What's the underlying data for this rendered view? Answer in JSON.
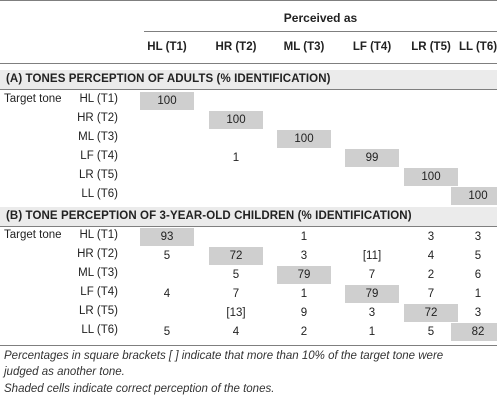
{
  "header": {
    "perceived_as": "Perceived as",
    "columns": [
      "HL (T1)",
      "HR (T2)",
      "ML (T3)",
      "LF (T4)",
      "LR (T5)",
      "LL (T6)"
    ]
  },
  "section_a": {
    "title": "(A) TONES PERCEPTION OF ADULTS (% IDENTIFICATION)",
    "rows": [
      {
        "lead": "Target tone",
        "label": "HL (T1)",
        "cells": [
          "100",
          "",
          "",
          "",
          "",
          ""
        ],
        "shaded": 0
      },
      {
        "lead": "",
        "label": "HR (T2)",
        "cells": [
          "",
          "100",
          "",
          "",
          "",
          ""
        ],
        "shaded": 1
      },
      {
        "lead": "",
        "label": "ML (T3)",
        "cells": [
          "",
          "",
          "100",
          "",
          "",
          ""
        ],
        "shaded": 2
      },
      {
        "lead": "",
        "label": "LF (T4)",
        "cells": [
          "",
          "1",
          "",
          "99",
          "",
          ""
        ],
        "shaded": 3
      },
      {
        "lead": "",
        "label": "LR (T5)",
        "cells": [
          "",
          "",
          "",
          "",
          "100",
          ""
        ],
        "shaded": 4
      },
      {
        "lead": "",
        "label": "LL (T6)",
        "cells": [
          "",
          "",
          "",
          "",
          "",
          "100"
        ],
        "shaded": 5
      }
    ]
  },
  "section_b": {
    "title": "(B) TONE PERCEPTION OF 3-YEAR-OLD CHILDREN (% IDENTIFICATION)",
    "rows": [
      {
        "lead": "Target tone",
        "label": "HL (T1)",
        "cells": [
          "93",
          "",
          "1",
          "",
          "3",
          "3"
        ],
        "shaded": 0
      },
      {
        "lead": "",
        "label": "HR (T2)",
        "cells": [
          "5",
          "72",
          "3",
          "[11]",
          "4",
          "5"
        ],
        "shaded": 1
      },
      {
        "lead": "",
        "label": "ML (T3)",
        "cells": [
          "",
          "5",
          "79",
          "7",
          "2",
          "6"
        ],
        "shaded": 2
      },
      {
        "lead": "",
        "label": "LF (T4)",
        "cells": [
          "4",
          "7",
          "1",
          "79",
          "7",
          "1"
        ],
        "shaded": 3
      },
      {
        "lead": "",
        "label": "LR (T5)",
        "cells": [
          "",
          "[13]",
          "9",
          "3",
          "72",
          "3"
        ],
        "shaded": 4
      },
      {
        "lead": "",
        "label": "LL (T6)",
        "cells": [
          "5",
          "4",
          "2",
          "1",
          "5",
          "82"
        ],
        "shaded": 5
      }
    ]
  },
  "footnotes": [
    "Percentages in square brackets [ ] indicate that more than 10% of the target tone were",
    "judged as another tone.",
    "Shaded cells indicate correct perception of the tones."
  ]
}
